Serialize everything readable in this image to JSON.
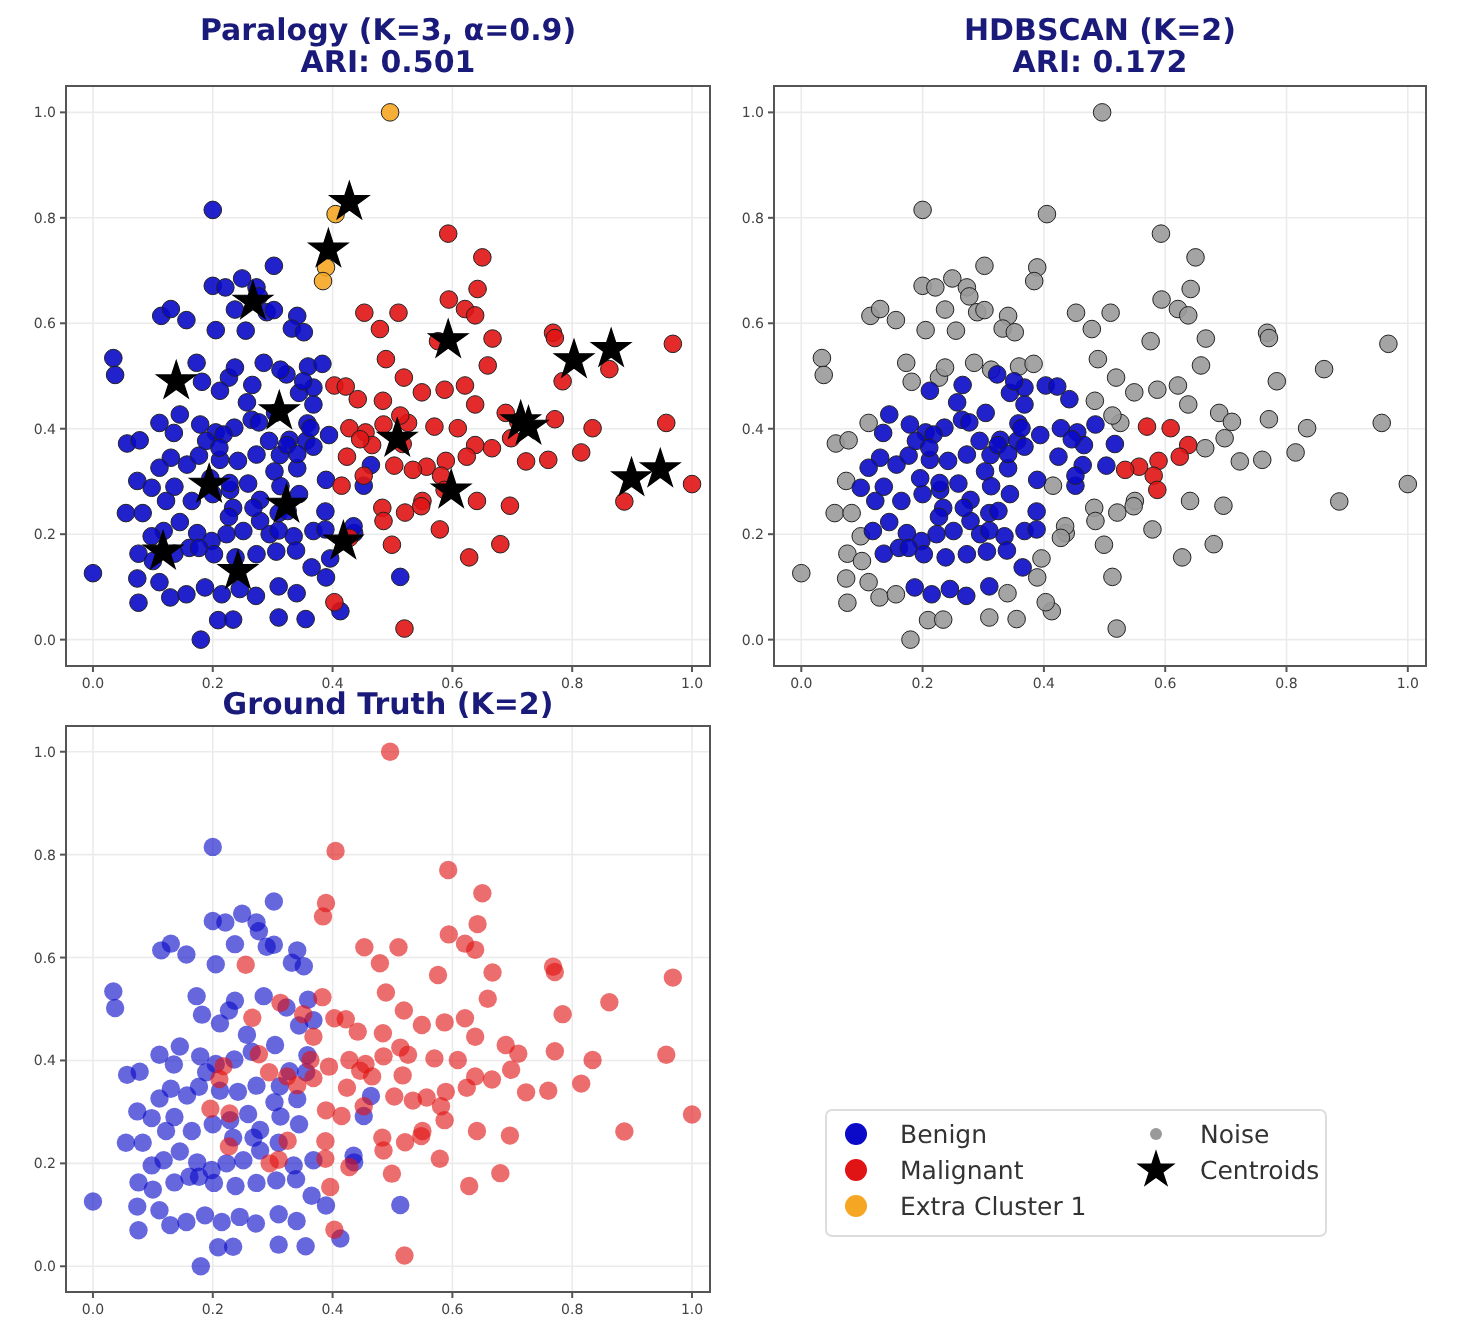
{
  "chart_data": [
    {
      "type": "scatter",
      "title": "Paralogy (K=3, α=0.9)",
      "subtitle": "ARI: 0.501",
      "xlim": [
        -0.045,
        1.03
      ],
      "ylim": [
        -0.05,
        1.05
      ],
      "legend": "bottom right",
      "xticks": [
        {
          "value": 0,
          "label": "0.0"
        },
        {
          "value": 0.2,
          "label": "0.2"
        },
        {
          "value": 0.4,
          "label": "0.4"
        },
        {
          "value": 0.6,
          "label": "0.6"
        },
        {
          "value": 0.8,
          "label": "0.8"
        },
        {
          "value": 1,
          "label": "1.0"
        }
      ],
      "yticks": [
        {
          "value": 0,
          "label": "0.0"
        },
        {
          "value": 0.2,
          "label": "0.2"
        },
        {
          "value": 0.4,
          "label": "0.4"
        },
        {
          "value": 0.6,
          "label": "0.6"
        },
        {
          "value": 0.8,
          "label": "0.8"
        },
        {
          "value": 1,
          "label": "1.0"
        }
      ],
      "grid": true,
      "series": [
        {
          "name": "Benign",
          "marker": "circle",
          "color": "#0a0ac8",
          "x": [
            0.2,
            0.302,
            0.2,
            0.221,
            0.249,
            0.237,
            0.273,
            0.277,
            0.29,
            0.302,
            0.341,
            0.114,
            0.13,
            0.156,
            0.205,
            0.332,
            0.352,
            0.034,
            0.037,
            0.173,
            0.182,
            0.227,
            0.237,
            0.285,
            0.359,
            0.212,
            0.257,
            0.344,
            0.111,
            0.135,
            0.057,
            0.078,
            0.179,
            0.205,
            0.236,
            0.265,
            0.304,
            0.328,
            0.358,
            0.13,
            0.157,
            0.177,
            0.212,
            0.242,
            0.273,
            0.303,
            0.341,
            0.356,
            0.074,
            0.098,
            0.122,
            0.136,
            0.165,
            0.2,
            0.229,
            0.259,
            0.279,
            0.313,
            0.344,
            0.055,
            0.083,
            0.118,
            0.145,
            0.174,
            0.198,
            0.223,
            0.251,
            0.279,
            0.31,
            0.335,
            0.368,
            0.436,
            0.076,
            0.1,
            0.136,
            0.161,
            0.202,
            0.238,
            0.273,
            0.306,
            0.339,
            0.365,
            0.389,
            0.074,
            0.111,
            0.129,
            0.156,
            0.187,
            0.215,
            0.245,
            0.272,
            0.31,
            0.34,
            0.076,
            0.209,
            0.234,
            0.31,
            0.355,
            0.18,
            0,
            0.413,
            0.513,
            0.435,
            0.452,
            0.464,
            0.177,
            0.234,
            0.268,
            0.189,
            0.312,
            0.145,
            0.323,
            0.368,
            0.111,
            0.098,
            0.255,
            0.383,
            0.313,
            0.266,
            0.394,
            0.363,
            0.324,
            0.294,
            0.277,
            0.218,
            0.211,
            0.389,
            0.368,
            0.341,
            0.388,
            0.388,
            0.396,
            0.325,
            0.295,
            0.227,
            0.228,
            0.196,
            0.31,
            0.368,
            0.351
          ],
          "values": [
            0.815,
            0.709,
            0.671,
            0.668,
            0.685,
            0.626,
            0.668,
            0.651,
            0.621,
            0.625,
            0.614,
            0.614,
            0.627,
            0.606,
            0.587,
            0.59,
            0.583,
            0.534,
            0.502,
            0.525,
            0.489,
            0.497,
            0.516,
            0.525,
            0.518,
            0.472,
            0.45,
            0.468,
            0.411,
            0.392,
            0.372,
            0.378,
            0.408,
            0.393,
            0.402,
            0.417,
            0.43,
            0.379,
            0.41,
            0.345,
            0.332,
            0.349,
            0.341,
            0.339,
            0.351,
            0.319,
            0.325,
            0.377,
            0.301,
            0.288,
            0.263,
            0.29,
            0.263,
            0.276,
            0.284,
            0.296,
            0.265,
            0.291,
            0.276,
            0.24,
            0.24,
            0.206,
            0.223,
            0.202,
            0.187,
            0.2,
            0.206,
            0.225,
            0.24,
            0.196,
            0.206,
            0.202,
            0.163,
            0.149,
            0.163,
            0.174,
            0.162,
            0.156,
            0.162,
            0.167,
            0.169,
            0.137,
            0.118,
            0.116,
            0.109,
            0.08,
            0.086,
            0.099,
            0.086,
            0.096,
            0.083,
            0.101,
            0.088,
            0.07,
            0.037,
            0.038,
            0.042,
            0.039,
            0,
            0.126,
            0.054,
            0.119,
            0.215,
            0.292,
            0.331,
            0.174,
            0.25,
            0.25,
            0.377,
            0.35,
            0.427,
            0.503,
            0.478,
            0.326,
            0.196,
            0.586,
            0.523,
            0.512,
            0.483,
            0.388,
            0.401,
            0.369,
            0.377,
            0.412,
            0.389,
            0.364,
            0.303,
            0.366,
            0.352,
            0.243,
            0.209,
            0.154,
            0.244,
            0.2,
            0.233,
            0.297,
            0.306,
            0.207,
            0.446,
            0.49
          ]
        },
        {
          "name": "Malignant",
          "marker": "circle",
          "color": "#e01414",
          "x": [
            0.593,
            0.65,
            0.642,
            0.594,
            0.621,
            0.638,
            0.453,
            0.51,
            0.479,
            0.576,
            0.768,
            0.771,
            0.968,
            0.667,
            0.659,
            0.862,
            0.784,
            0.489,
            0.519,
            0.403,
            0.422,
            0.442,
            0.549,
            0.587,
            0.621,
            0.638,
            0.689,
            0.71,
            0.771,
            0.834,
            0.957,
            0.815,
            0.76,
            0.723,
            0.698,
            0.666,
            0.638,
            0.609,
            0.57,
            0.526,
            0.485,
            0.455,
            0.428,
            0.424,
            0.466,
            0.517,
            0.557,
            0.589,
            0.624,
            0.581,
            0.534,
            0.503,
            0.452,
            0.415,
            1.0,
            0.887,
            0.696,
            0.641,
            0.55,
            0.587,
            0.483,
            0.521,
            0.579,
            0.68,
            0.628,
            0.499,
            0.428,
            0.403,
            0.52,
            0.485,
            0.548,
            0.446,
            0.484,
            0.513
          ],
          "values": [
            0.77,
            0.725,
            0.665,
            0.645,
            0.627,
            0.615,
            0.62,
            0.62,
            0.589,
            0.566,
            0.582,
            0.572,
            0.561,
            0.571,
            0.52,
            0.513,
            0.49,
            0.532,
            0.497,
            0.482,
            0.48,
            0.456,
            0.469,
            0.474,
            0.482,
            0.446,
            0.43,
            0.413,
            0.418,
            0.401,
            0.411,
            0.355,
            0.341,
            0.338,
            0.382,
            0.363,
            0.369,
            0.401,
            0.404,
            0.411,
            0.408,
            0.393,
            0.401,
            0.347,
            0.369,
            0.371,
            0.328,
            0.339,
            0.347,
            0.311,
            0.322,
            0.33,
            0.311,
            0.292,
            0.295,
            0.262,
            0.254,
            0.263,
            0.263,
            0.284,
            0.25,
            0.241,
            0.209,
            0.181,
            0.156,
            0.18,
            0.193,
            0.071,
            0.021,
            0.225,
            0.253,
            0.38,
            0.453,
            0.425
          ]
        },
        {
          "name": "Extra Cluster 1",
          "marker": "circle",
          "color": "#f5a623",
          "x": [
            0.496,
            0.405,
            0.389,
            0.384
          ],
          "values": [
            1.0,
            0.807,
            0.706,
            0.68
          ]
        },
        {
          "name": "Centroids",
          "marker": "star",
          "color": "#000000",
          "x": [
            0.428,
            0.393,
            0.267,
            0.139,
            0.311,
            0.593,
            0.803,
            0.865,
            0.508,
            0.714,
            0.727,
            0.598,
            0.899,
            0.947,
            0.194,
            0.323,
            0.418,
            0.117,
            0.242
          ],
          "values": [
            0.83,
            0.74,
            0.641,
            0.49,
            0.433,
            0.568,
            0.53,
            0.551,
            0.381,
            0.414,
            0.404,
            0.283,
            0.306,
            0.323,
            0.294,
            0.256,
            0.186,
            0.167,
            0.13
          ]
        }
      ]
    },
    {
      "type": "scatter",
      "title": "HDBSCAN (K=2)",
      "subtitle": "ARI: 0.172",
      "xlim": [
        -0.045,
        1.03
      ],
      "ylim": [
        -0.05,
        1.05
      ],
      "xticks": [
        {
          "value": 0,
          "label": "0.0"
        },
        {
          "value": 0.2,
          "label": "0.2"
        },
        {
          "value": 0.4,
          "label": "0.4"
        },
        {
          "value": 0.6,
          "label": "0.6"
        },
        {
          "value": 0.8,
          "label": "0.8"
        },
        {
          "value": 1,
          "label": "1.0"
        }
      ],
      "yticks": [
        {
          "value": 0,
          "label": "0.0"
        },
        {
          "value": 0.2,
          "label": "0.2"
        },
        {
          "value": 0.4,
          "label": "0.4"
        },
        {
          "value": 0.6,
          "label": "0.6"
        },
        {
          "value": 0.8,
          "label": "0.8"
        },
        {
          "value": 1,
          "label": "1.0"
        }
      ],
      "grid": true,
      "series": [
        {
          "name": "Noise",
          "marker": "circle",
          "color": "#9a9a9a",
          "x": [
            0.2,
            0.302,
            0.2,
            0.221,
            0.249,
            0.237,
            0.273,
            0.277,
            0.29,
            0.302,
            0.341,
            0.114,
            0.13,
            0.156,
            0.205,
            0.332,
            0.352,
            0.034,
            0.037,
            0.173,
            0.182,
            0.227,
            0.237,
            0.285,
            0.359,
            0.111,
            0.057,
            0.078,
            0.074,
            0.055,
            0.083,
            0.436,
            0.076,
            0.1,
            0.389,
            0.074,
            0.111,
            0.129,
            0.156,
            0.34,
            0.076,
            0.209,
            0.234,
            0.31,
            0.355,
            0.18,
            0,
            0.413,
            0.513,
            0.435,
            0.098,
            0.496,
            0.405,
            0.593,
            0.65,
            0.389,
            0.384,
            0.642,
            0.594,
            0.621,
            0.638,
            0.453,
            0.51,
            0.255,
            0.479,
            0.576,
            0.768,
            0.771,
            0.968,
            0.667,
            0.659,
            0.862,
            0.784,
            0.489,
            0.519,
            0.383,
            0.313,
            0.549,
            0.587,
            0.621,
            0.638,
            0.689,
            0.71,
            0.771,
            0.834,
            0.957,
            0.815,
            0.76,
            0.723,
            0.698,
            0.666,
            0.526,
            0.415,
            1.0,
            0.887,
            0.696,
            0.641,
            0.55,
            0.483,
            0.521,
            0.579,
            0.68,
            0.628,
            0.499,
            0.428,
            0.396,
            0.403,
            0.52,
            0.485,
            0.548,
            0.484,
            0.513
          ],
          "values": [
            0.815,
            0.709,
            0.671,
            0.668,
            0.685,
            0.626,
            0.668,
            0.651,
            0.621,
            0.625,
            0.614,
            0.614,
            0.627,
            0.606,
            0.587,
            0.59,
            0.583,
            0.534,
            0.502,
            0.525,
            0.489,
            0.497,
            0.516,
            0.525,
            0.518,
            0.411,
            0.372,
            0.378,
            0.301,
            0.24,
            0.24,
            0.202,
            0.163,
            0.149,
            0.118,
            0.116,
            0.109,
            0.08,
            0.086,
            0.088,
            0.07,
            0.037,
            0.038,
            0.042,
            0.039,
            0,
            0.126,
            0.054,
            0.119,
            0.215,
            0.196,
            1.0,
            0.807,
            0.77,
            0.725,
            0.706,
            0.68,
            0.665,
            0.645,
            0.627,
            0.615,
            0.62,
            0.62,
            0.586,
            0.589,
            0.566,
            0.582,
            0.572,
            0.561,
            0.571,
            0.52,
            0.513,
            0.49,
            0.532,
            0.497,
            0.523,
            0.512,
            0.469,
            0.474,
            0.482,
            0.446,
            0.43,
            0.413,
            0.418,
            0.401,
            0.411,
            0.355,
            0.341,
            0.338,
            0.382,
            0.363,
            0.411,
            0.292,
            0.295,
            0.262,
            0.254,
            0.263,
            0.263,
            0.25,
            0.241,
            0.209,
            0.181,
            0.156,
            0.18,
            0.193,
            0.154,
            0.071,
            0.021,
            0.225,
            0.253,
            0.453,
            0.425
          ]
        },
        {
          "name": "Benign",
          "marker": "circle",
          "color": "#0a0ac8",
          "x": [
            0.212,
            0.257,
            0.344,
            0.135,
            0.179,
            0.205,
            0.236,
            0.265,
            0.304,
            0.328,
            0.358,
            0.13,
            0.157,
            0.177,
            0.212,
            0.242,
            0.273,
            0.303,
            0.341,
            0.356,
            0.098,
            0.122,
            0.136,
            0.165,
            0.2,
            0.229,
            0.259,
            0.279,
            0.313,
            0.344,
            0.118,
            0.145,
            0.174,
            0.198,
            0.223,
            0.251,
            0.279,
            0.31,
            0.335,
            0.368,
            0.136,
            0.161,
            0.202,
            0.238,
            0.273,
            0.306,
            0.339,
            0.365,
            0.187,
            0.215,
            0.245,
            0.272,
            0.31,
            0.452,
            0.464,
            0.177,
            0.234,
            0.268,
            0.189,
            0.312,
            0.145,
            0.323,
            0.368,
            0.111,
            0.266,
            0.403,
            0.422,
            0.442,
            0.485,
            0.455,
            0.428,
            0.394,
            0.363,
            0.324,
            0.294,
            0.277,
            0.218,
            0.211,
            0.424,
            0.466,
            0.517,
            0.503,
            0.452,
            0.389,
            0.368,
            0.341,
            0.388,
            0.388,
            0.325,
            0.295,
            0.227,
            0.228,
            0.196,
            0.31,
            0.368,
            0.351,
            0.446
          ],
          "values": [
            0.472,
            0.45,
            0.468,
            0.392,
            0.408,
            0.393,
            0.402,
            0.417,
            0.43,
            0.379,
            0.41,
            0.345,
            0.332,
            0.349,
            0.341,
            0.339,
            0.351,
            0.319,
            0.325,
            0.377,
            0.288,
            0.263,
            0.29,
            0.263,
            0.276,
            0.284,
            0.296,
            0.265,
            0.291,
            0.276,
            0.206,
            0.223,
            0.202,
            0.187,
            0.2,
            0.206,
            0.225,
            0.24,
            0.196,
            0.206,
            0.163,
            0.174,
            0.162,
            0.156,
            0.162,
            0.167,
            0.169,
            0.137,
            0.099,
            0.086,
            0.096,
            0.083,
            0.101,
            0.292,
            0.331,
            0.174,
            0.25,
            0.25,
            0.377,
            0.35,
            0.427,
            0.503,
            0.478,
            0.326,
            0.483,
            0.482,
            0.48,
            0.456,
            0.408,
            0.393,
            0.401,
            0.388,
            0.401,
            0.369,
            0.377,
            0.412,
            0.389,
            0.364,
            0.347,
            0.369,
            0.371,
            0.33,
            0.311,
            0.303,
            0.366,
            0.352,
            0.243,
            0.209,
            0.244,
            0.2,
            0.233,
            0.297,
            0.306,
            0.207,
            0.446,
            0.49,
            0.38
          ]
        },
        {
          "name": "Malignant",
          "marker": "circle",
          "color": "#e01414",
          "x": [
            0.638,
            0.609,
            0.57,
            0.557,
            0.589,
            0.624,
            0.581,
            0.534,
            0.587
          ],
          "values": [
            0.369,
            0.401,
            0.404,
            0.328,
            0.339,
            0.347,
            0.311,
            0.322,
            0.284
          ]
        }
      ]
    },
    {
      "type": "scatter",
      "title": "Ground Truth (K=2)",
      "xlim": [
        -0.045,
        1.03
      ],
      "ylim": [
        -0.05,
        1.05
      ],
      "xticks": [
        {
          "value": 0,
          "label": "0.0"
        },
        {
          "value": 0.2,
          "label": "0.2"
        },
        {
          "value": 0.4,
          "label": "0.4"
        },
        {
          "value": 0.6,
          "label": "0.6"
        },
        {
          "value": 0.8,
          "label": "0.8"
        },
        {
          "value": 1,
          "label": "1.0"
        }
      ],
      "yticks": [
        {
          "value": 0,
          "label": "0.0"
        },
        {
          "value": 0.2,
          "label": "0.2"
        },
        {
          "value": 0.4,
          "label": "0.4"
        },
        {
          "value": 0.6,
          "label": "0.6"
        },
        {
          "value": 0.8,
          "label": "0.8"
        },
        {
          "value": 1,
          "label": "1.0"
        }
      ],
      "grid": true,
      "series": [
        {
          "name": "Benign",
          "marker": "circle",
          "color": "#0a0ac8",
          "x": [
            0.2,
            0.302,
            0.2,
            0.221,
            0.249,
            0.237,
            0.273,
            0.277,
            0.29,
            0.302,
            0.341,
            0.114,
            0.13,
            0.156,
            0.205,
            0.332,
            0.352,
            0.034,
            0.037,
            0.173,
            0.182,
            0.227,
            0.237,
            0.285,
            0.359,
            0.212,
            0.257,
            0.344,
            0.111,
            0.135,
            0.057,
            0.078,
            0.179,
            0.205,
            0.236,
            0.265,
            0.304,
            0.328,
            0.358,
            0.13,
            0.157,
            0.177,
            0.212,
            0.242,
            0.273,
            0.303,
            0.341,
            0.356,
            0.074,
            0.098,
            0.122,
            0.136,
            0.165,
            0.2,
            0.229,
            0.259,
            0.279,
            0.313,
            0.344,
            0.055,
            0.083,
            0.118,
            0.145,
            0.174,
            0.198,
            0.223,
            0.251,
            0.279,
            0.31,
            0.335,
            0.368,
            0.436,
            0.076,
            0.1,
            0.136,
            0.161,
            0.202,
            0.238,
            0.273,
            0.306,
            0.339,
            0.365,
            0.389,
            0.074,
            0.111,
            0.129,
            0.156,
            0.187,
            0.215,
            0.245,
            0.272,
            0.31,
            0.34,
            0.076,
            0.209,
            0.234,
            0.31,
            0.355,
            0.18,
            0,
            0.413,
            0.513,
            0.435,
            0.452,
            0.464,
            0.177,
            0.234,
            0.268,
            0.189,
            0.312,
            0.145,
            0.323,
            0.368,
            0.111,
            0.098
          ],
          "values": [
            0.815,
            0.709,
            0.671,
            0.668,
            0.685,
            0.626,
            0.668,
            0.651,
            0.621,
            0.625,
            0.614,
            0.614,
            0.627,
            0.606,
            0.587,
            0.59,
            0.583,
            0.534,
            0.502,
            0.525,
            0.489,
            0.497,
            0.516,
            0.525,
            0.518,
            0.472,
            0.45,
            0.468,
            0.411,
            0.392,
            0.372,
            0.378,
            0.408,
            0.393,
            0.402,
            0.417,
            0.43,
            0.379,
            0.41,
            0.345,
            0.332,
            0.349,
            0.341,
            0.339,
            0.351,
            0.319,
            0.325,
            0.377,
            0.301,
            0.288,
            0.263,
            0.29,
            0.263,
            0.276,
            0.284,
            0.296,
            0.265,
            0.291,
            0.276,
            0.24,
            0.24,
            0.206,
            0.223,
            0.202,
            0.187,
            0.2,
            0.206,
            0.225,
            0.24,
            0.196,
            0.206,
            0.202,
            0.163,
            0.149,
            0.163,
            0.174,
            0.162,
            0.156,
            0.162,
            0.167,
            0.169,
            0.137,
            0.118,
            0.116,
            0.109,
            0.08,
            0.086,
            0.099,
            0.086,
            0.096,
            0.083,
            0.101,
            0.088,
            0.07,
            0.037,
            0.038,
            0.042,
            0.039,
            0,
            0.126,
            0.054,
            0.119,
            0.215,
            0.292,
            0.331,
            0.174,
            0.25,
            0.25,
            0.377,
            0.35,
            0.427,
            0.503,
            0.478,
            0.326,
            0.196
          ]
        },
        {
          "name": "Malignant",
          "marker": "circle",
          "color": "#e01414",
          "x": [
            0.496,
            0.405,
            0.593,
            0.65,
            0.389,
            0.384,
            0.642,
            0.594,
            0.621,
            0.638,
            0.453,
            0.51,
            0.255,
            0.479,
            0.576,
            0.768,
            0.771,
            0.968,
            0.667,
            0.659,
            0.862,
            0.784,
            0.489,
            0.519,
            0.383,
            0.313,
            0.266,
            0.403,
            0.422,
            0.442,
            0.549,
            0.587,
            0.621,
            0.638,
            0.689,
            0.71,
            0.771,
            0.834,
            0.957,
            0.815,
            0.76,
            0.723,
            0.698,
            0.666,
            0.638,
            0.609,
            0.57,
            0.526,
            0.485,
            0.455,
            0.428,
            0.394,
            0.363,
            0.324,
            0.294,
            0.277,
            0.218,
            0.211,
            0.424,
            0.466,
            0.517,
            0.557,
            0.589,
            0.624,
            0.581,
            0.534,
            0.503,
            0.452,
            0.415,
            0.389,
            0.368,
            0.341,
            1.0,
            0.887,
            0.696,
            0.641,
            0.55,
            0.587,
            0.483,
            0.521,
            0.579,
            0.68,
            0.628,
            0.499,
            0.428,
            0.388,
            0.388,
            0.396,
            0.403,
            0.52,
            0.325,
            0.295,
            0.227,
            0.228,
            0.196,
            0.31,
            0.485,
            0.548,
            0.368,
            0.351,
            0.446,
            0.484,
            0.513
          ],
          "values": [
            1.0,
            0.807,
            0.77,
            0.725,
            0.706,
            0.68,
            0.665,
            0.645,
            0.627,
            0.615,
            0.62,
            0.62,
            0.586,
            0.589,
            0.566,
            0.582,
            0.572,
            0.561,
            0.571,
            0.52,
            0.513,
            0.49,
            0.532,
            0.497,
            0.523,
            0.512,
            0.483,
            0.482,
            0.48,
            0.456,
            0.469,
            0.474,
            0.482,
            0.446,
            0.43,
            0.413,
            0.418,
            0.401,
            0.411,
            0.355,
            0.341,
            0.338,
            0.382,
            0.363,
            0.369,
            0.401,
            0.404,
            0.411,
            0.408,
            0.393,
            0.401,
            0.388,
            0.401,
            0.369,
            0.377,
            0.412,
            0.389,
            0.364,
            0.347,
            0.369,
            0.371,
            0.328,
            0.339,
            0.347,
            0.311,
            0.322,
            0.33,
            0.311,
            0.292,
            0.303,
            0.366,
            0.352,
            0.295,
            0.262,
            0.254,
            0.263,
            0.263,
            0.284,
            0.25,
            0.241,
            0.209,
            0.181,
            0.156,
            0.18,
            0.193,
            0.243,
            0.209,
            0.154,
            0.071,
            0.021,
            0.244,
            0.2,
            0.233,
            0.297,
            0.306,
            0.207,
            0.225,
            0.253,
            0.446,
            0.49,
            0.38,
            0.453,
            0.425
          ]
        }
      ]
    }
  ]
}
